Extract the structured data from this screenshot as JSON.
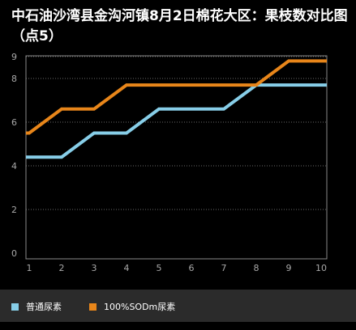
{
  "chart_data": {
    "type": "line",
    "title": "中石油沙湾县金沟河镇8月2日棉花大区：果枝数对比图（点5）",
    "x": [
      1,
      2,
      3,
      4,
      5,
      6,
      7,
      8,
      9,
      10
    ],
    "y_ticks": [
      0,
      2,
      4,
      6,
      8,
      9
    ],
    "ylim": [
      0,
      9
    ],
    "xlim": [
      1,
      10
    ],
    "series": [
      {
        "name": "普通尿素",
        "color": "#87cee8",
        "values": [
          4.4,
          4.4,
          5.5,
          5.5,
          6.6,
          6.6,
          6.6,
          7.7,
          7.7,
          7.7
        ]
      },
      {
        "name": "100%SODm尿素",
        "color": "#e8861a",
        "values": [
          5.5,
          6.6,
          6.6,
          7.7,
          7.7,
          7.7,
          7.7,
          7.7,
          8.8,
          8.8
        ]
      }
    ],
    "grid": true,
    "legend_position": "bottom"
  },
  "colors": {
    "background": "#000000",
    "plot_border": "#8a8a8a",
    "grid": "#6a6a6a",
    "legend_background": "#2b2b2b"
  }
}
